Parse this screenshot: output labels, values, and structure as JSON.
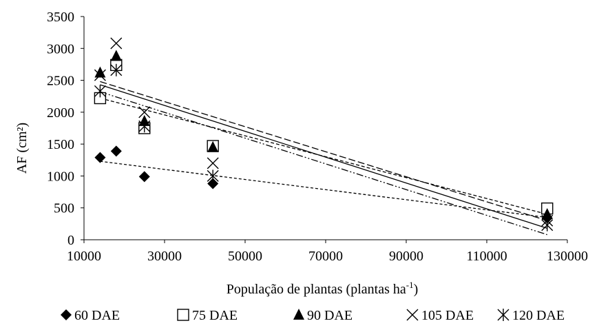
{
  "chart_data": {
    "type": "scatter",
    "title": "",
    "xlabel": "População de plantas (plantas ha",
    "xlabel_sup": "-1",
    "xlabel_suffix": ")",
    "ylabel": "AF (cm²)",
    "xlim": [
      10000,
      130000
    ],
    "ylim": [
      0,
      3500
    ],
    "x_ticks": [
      10000,
      30000,
      50000,
      70000,
      90000,
      110000,
      130000
    ],
    "y_ticks": [
      0,
      500,
      1000,
      1500,
      2000,
      2500,
      3000,
      3500
    ],
    "x_tick_labels": [
      "10000",
      "30000",
      "50000",
      "70000",
      "90000",
      "110000",
      "130000"
    ],
    "y_tick_labels": [
      "0",
      "500",
      "1000",
      "1500",
      "2000",
      "2500",
      "3000",
      "3500"
    ],
    "grid": false,
    "legend_position": "bottom",
    "x": [
      14000,
      18000,
      25000,
      42000,
      125000
    ],
    "series": [
      {
        "name": "60 DAE",
        "marker": "diamond",
        "values": [
          1290,
          1390,
          990,
          880,
          340
        ],
        "trend": {
          "x": [
            14000,
            125000
          ],
          "y": [
            1230,
            350
          ],
          "dash": "4,3"
        }
      },
      {
        "name": "75 DAE",
        "marker": "square",
        "values": [
          2220,
          2740,
          1750,
          1470,
          490
        ],
        "trend": {
          "x": [
            14000,
            125000
          ],
          "y": [
            2220,
            400
          ],
          "dash": "5,3"
        }
      },
      {
        "name": "90 DAE",
        "marker": "triangle",
        "values": [
          2620,
          2880,
          1860,
          1450,
          400
        ],
        "trend": {
          "x": [
            14000,
            125000
          ],
          "y": [
            2480,
            300
          ],
          "dash": "10,4"
        }
      },
      {
        "name": "105 DAE",
        "marker": "x",
        "values": [
          2580,
          3080,
          2000,
          1200,
          300
        ],
        "trend": {
          "x": [
            14000,
            125000
          ],
          "y": [
            2430,
            180
          ],
          "dash": ""
        }
      },
      {
        "name": "120 DAE",
        "marker": "asterisk",
        "values": [
          2330,
          2660,
          1780,
          1000,
          230
        ],
        "trend": {
          "x": [
            14000,
            125000
          ],
          "y": [
            2320,
            80
          ],
          "dash": "10,3,2,3,2,3"
        }
      }
    ]
  }
}
